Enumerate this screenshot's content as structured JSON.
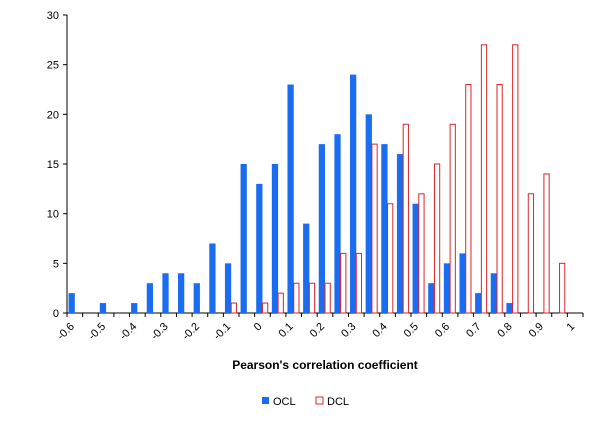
{
  "chart_data": {
    "type": "bar",
    "x_label": "Pearson's correlation coefficient",
    "categories": [
      "-0.6",
      null,
      "-0.5",
      null,
      "-0.4",
      null,
      "-0.3",
      null,
      "-0.2",
      null,
      "-0.1",
      null,
      "0",
      null,
      "0.1",
      null,
      "0.2",
      null,
      "0.3",
      null,
      "0.4",
      null,
      "0.5",
      null,
      "0.6",
      null,
      "0.7",
      null,
      "0.8",
      null,
      "0.9",
      null,
      "1"
    ],
    "series": [
      {
        "name": "OCL",
        "color": "#1a6cf0",
        "fill": true,
        "values": [
          2,
          0,
          1,
          0,
          1,
          3,
          4,
          4,
          3,
          7,
          5,
          15,
          13,
          15,
          23,
          9,
          17,
          18,
          24,
          20,
          17,
          16,
          11,
          3,
          5,
          6,
          2,
          4,
          1,
          0,
          0,
          0,
          0
        ]
      },
      {
        "name": "DCL",
        "color": "#d9262b",
        "fill": false,
        "values": [
          0,
          0,
          0,
          0,
          0,
          0,
          0,
          0,
          0,
          0,
          1,
          0,
          1,
          2,
          3,
          3,
          3,
          6,
          6,
          17,
          11,
          19,
          12,
          15,
          19,
          23,
          27,
          23,
          27,
          12,
          14,
          5,
          0
        ]
      }
    ],
    "ylim": [
      0,
      30
    ],
    "yticks": [
      0,
      5,
      10,
      15,
      20,
      25,
      30
    ],
    "legend": "bottom"
  }
}
